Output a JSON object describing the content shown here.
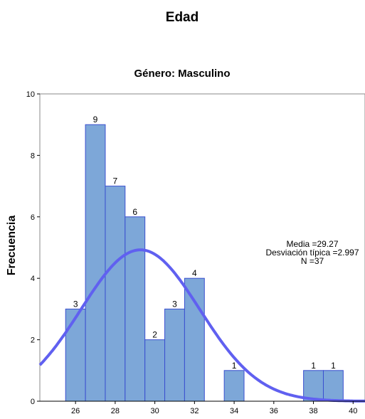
{
  "chart_data": {
    "type": "bar",
    "title": "Edad",
    "subtitle": "Género: Masculino",
    "ylabel": "Frecuencia",
    "xlabel": "",
    "xlim": [
      24.2,
      40.6
    ],
    "ylim": [
      0,
      10
    ],
    "xticks": [
      26,
      28,
      30,
      32,
      34,
      36,
      38,
      40
    ],
    "yticks": [
      0,
      2,
      4,
      6,
      8,
      10
    ],
    "grid": false,
    "bars": [
      {
        "x": 26,
        "count": 3,
        "label": "3"
      },
      {
        "x": 27,
        "count": 9,
        "label": "9"
      },
      {
        "x": 28,
        "count": 7,
        "label": "7"
      },
      {
        "x": 29,
        "count": 6,
        "label": "6"
      },
      {
        "x": 30,
        "count": 2,
        "label": "2"
      },
      {
        "x": 31,
        "count": 3,
        "label": "3"
      },
      {
        "x": 32,
        "count": 4,
        "label": "4"
      },
      {
        "x": 34,
        "count": 1,
        "label": "1"
      },
      {
        "x": 38,
        "count": 1,
        "label": "1"
      },
      {
        "x": 39,
        "count": 1,
        "label": "1"
      }
    ],
    "normal_curve": {
      "mean": 29.27,
      "sd": 2.997,
      "n": 37,
      "bin_width": 1
    },
    "stats_text": [
      "Media =29.27",
      "Desviación típica =2.997",
      "N =37"
    ],
    "colors": {
      "bar_fill": "#7da7d8",
      "bar_stroke": "#3a4fcf",
      "curve": "#6060f0"
    }
  }
}
